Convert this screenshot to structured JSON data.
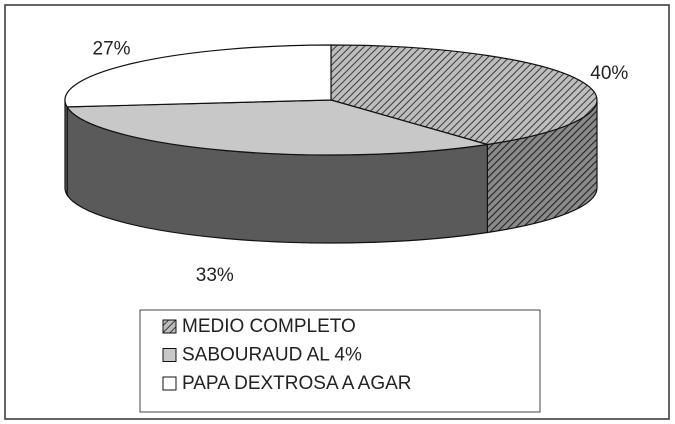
{
  "chart_data": {
    "type": "pie3d",
    "categories": [
      "MEDIO COMPLETO",
      "SABOURAUD AL 4%",
      "PAPA DEXTROSA A AGAR"
    ],
    "values": [
      40,
      33,
      27
    ],
    "value_labels": [
      "40%",
      "33%",
      "27%"
    ],
    "colors": [
      "#8a8a8a",
      "#c8c8c8",
      "#ffffff"
    ],
    "patterns": [
      "hatch",
      "solid",
      "solid"
    ],
    "legend": "bottom"
  }
}
